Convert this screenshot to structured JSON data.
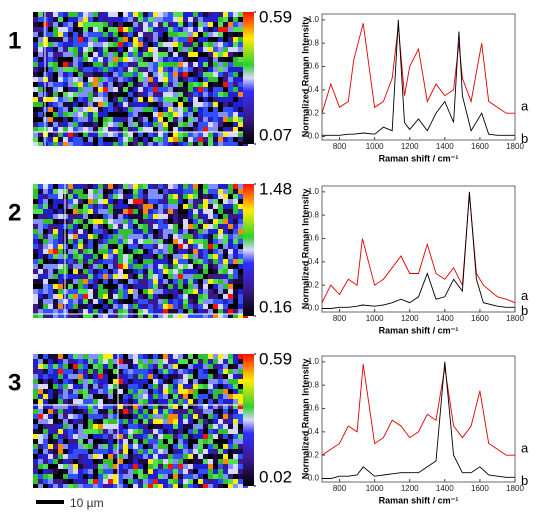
{
  "scale_bar": "10 µm",
  "chart_data": [
    {
      "type": "heatmap",
      "label": "1",
      "colorbar": {
        "lim": [
          0.07,
          0.59
        ],
        "ticks": [
          0.07,
          0.59
        ]
      }
    },
    {
      "type": "line",
      "xlabel": "Raman shift / cm⁻¹",
      "ylabel": "Normalized Raman Intensity",
      "xlim": [
        700,
        1800
      ],
      "ylim": [
        -0.03,
        1.05
      ],
      "xticks": [
        800,
        1000,
        1200,
        1400,
        1600,
        1800
      ],
      "yticks": [
        {
          "value": 0,
          "label": "0.0"
        },
        {
          "value": 0.2,
          "label": "0.2"
        },
        {
          "value": 0.4,
          "label": "0.4"
        },
        {
          "value": 0.6,
          "label": "0.6"
        },
        {
          "value": 0.8,
          "label": "0.8"
        },
        {
          "value": 1,
          "label": "1.0"
        }
      ],
      "x": [
        700,
        750,
        800,
        850,
        880,
        935,
        1000,
        1050,
        1100,
        1135,
        1170,
        1200,
        1250,
        1300,
        1350,
        1400,
        1450,
        1480,
        1500,
        1550,
        1610,
        1650,
        1700,
        1750,
        1800
      ],
      "series": [
        {
          "name": "a",
          "color": "#e00000",
          "values": [
            0.2,
            0.45,
            0.25,
            0.3,
            0.65,
            0.97,
            0.25,
            0.3,
            0.5,
            0.95,
            0.35,
            0.6,
            0.75,
            0.3,
            0.45,
            0.35,
            0.4,
            0.8,
            0.5,
            0.3,
            0.8,
            0.3,
            0.25,
            0.2,
            0.2
          ]
        },
        {
          "name": "b",
          "color": "#000000",
          "values": [
            0.01,
            0.01,
            0.01,
            0.02,
            0.02,
            0.03,
            0.02,
            0.08,
            0.05,
            1.0,
            0.12,
            0.06,
            0.15,
            0.05,
            0.2,
            0.3,
            0.12,
            0.9,
            0.35,
            0.05,
            0.2,
            0.02,
            0.01,
            0.01,
            0.01
          ]
        }
      ]
    },
    {
      "type": "heatmap",
      "label": "2",
      "colorbar": {
        "lim": [
          0.16,
          1.48
        ],
        "ticks": [
          0.16,
          1.48
        ]
      }
    },
    {
      "type": "line",
      "xlabel": "Raman shift / cm⁻¹",
      "ylabel": "Normalized Raman Intensity",
      "xlim": [
        700,
        1800
      ],
      "ylim": [
        -0.03,
        1.05
      ],
      "xticks": [
        800,
        1000,
        1200,
        1400,
        1600,
        1800
      ],
      "yticks": [
        {
          "value": 0,
          "label": "0.0"
        },
        {
          "value": 0.2,
          "label": "0.2"
        },
        {
          "value": 0.4,
          "label": "0.4"
        },
        {
          "value": 0.6,
          "label": "0.6"
        },
        {
          "value": 0.8,
          "label": "0.8"
        },
        {
          "value": 1,
          "label": "1.0"
        }
      ],
      "x": [
        700,
        750,
        800,
        850,
        900,
        930,
        1000,
        1050,
        1100,
        1150,
        1200,
        1250,
        1300,
        1350,
        1400,
        1450,
        1500,
        1540,
        1580,
        1620,
        1700,
        1750,
        1800
      ],
      "series": [
        {
          "name": "a",
          "color": "#e00000",
          "values": [
            0.05,
            0.2,
            0.12,
            0.25,
            0.2,
            0.6,
            0.2,
            0.25,
            0.35,
            0.45,
            0.3,
            0.3,
            0.55,
            0.3,
            0.25,
            0.35,
            0.2,
            0.98,
            0.3,
            0.2,
            0.1,
            0.08,
            0.05
          ]
        },
        {
          "name": "b",
          "color": "#000000",
          "values": [
            0,
            0,
            0.01,
            0.01,
            0.02,
            0.03,
            0.02,
            0.03,
            0.05,
            0.08,
            0.05,
            0.1,
            0.3,
            0.08,
            0.1,
            0.25,
            0.15,
            1.0,
            0.25,
            0.05,
            0.02,
            0.01,
            0.01
          ]
        }
      ]
    },
    {
      "type": "heatmap",
      "label": "3",
      "colorbar": {
        "lim": [
          0.02,
          0.59
        ],
        "ticks": [
          0.02,
          0.59
        ]
      }
    },
    {
      "type": "line",
      "xlabel": "Raman shift / cm⁻¹",
      "ylabel": "Normalized Raman Intensity",
      "xlim": [
        700,
        1800
      ],
      "ylim": [
        -0.03,
        1.05
      ],
      "xticks": [
        800,
        1000,
        1200,
        1400,
        1600,
        1800
      ],
      "yticks": [
        {
          "value": 0,
          "label": "0.0"
        },
        {
          "value": 0.2,
          "label": "0.2"
        },
        {
          "value": 0.4,
          "label": "0.4"
        },
        {
          "value": 0.6,
          "label": "0.6"
        },
        {
          "value": 0.8,
          "label": "0.8"
        },
        {
          "value": 1,
          "label": "1.0"
        }
      ],
      "x": [
        700,
        750,
        800,
        850,
        900,
        935,
        1000,
        1050,
        1100,
        1150,
        1200,
        1250,
        1300,
        1350,
        1400,
        1450,
        1500,
        1550,
        1600,
        1650,
        1700,
        1750,
        1800
      ],
      "series": [
        {
          "name": "a",
          "color": "#e00000",
          "values": [
            0.2,
            0.25,
            0.3,
            0.45,
            0.4,
            0.98,
            0.3,
            0.35,
            0.5,
            0.45,
            0.35,
            0.4,
            0.55,
            0.5,
            0.95,
            0.45,
            0.35,
            0.45,
            0.75,
            0.3,
            0.25,
            0.2,
            0.2
          ]
        },
        {
          "name": "b",
          "color": "#000000",
          "values": [
            0,
            0,
            0.02,
            0.02,
            0.03,
            0.1,
            0.02,
            0.03,
            0.04,
            0.05,
            0.05,
            0.05,
            0.1,
            0.15,
            1.0,
            0.2,
            0.05,
            0.05,
            0.1,
            0.03,
            0.02,
            0.01,
            0.01
          ]
        }
      ]
    }
  ]
}
